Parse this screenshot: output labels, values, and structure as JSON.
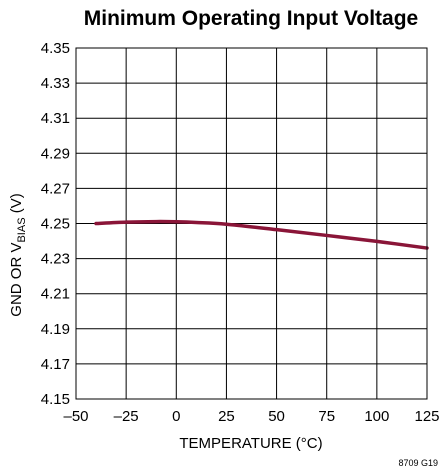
{
  "chart_data": {
    "type": "line",
    "title": "Minimum Operating Input Voltage",
    "xlabel": "TEMPERATURE (°C)",
    "ylabel": {
      "prefix": "GND OR V",
      "sub": "BIAS",
      "suffix": " (V)"
    },
    "figure_id": "8709 G19",
    "xlim": [
      -50,
      125
    ],
    "ylim": [
      4.15,
      4.35
    ],
    "xticks": [
      -50,
      -25,
      0,
      25,
      50,
      75,
      100,
      125
    ],
    "xtick_labels": [
      "–50",
      "–25",
      "0",
      "25",
      "50",
      "75",
      "100",
      "125"
    ],
    "yticks": [
      4.15,
      4.17,
      4.19,
      4.21,
      4.23,
      4.25,
      4.27,
      4.29,
      4.31,
      4.33,
      4.35
    ],
    "ytick_labels": [
      "4.15",
      "4.17",
      "4.19",
      "4.21",
      "4.23",
      "4.25",
      "4.27",
      "4.29",
      "4.31",
      "4.33",
      "4.35"
    ],
    "grid": true,
    "line_color": "#8a1538",
    "series": [
      {
        "x": [
          -40,
          -25,
          -10,
          0,
          10,
          25,
          50,
          75,
          100,
          125
        ],
        "values": [
          4.25,
          4.2508,
          4.2511,
          4.251,
          4.2506,
          4.2496,
          4.2465,
          4.2432,
          4.2398,
          4.236
        ]
      }
    ]
  }
}
